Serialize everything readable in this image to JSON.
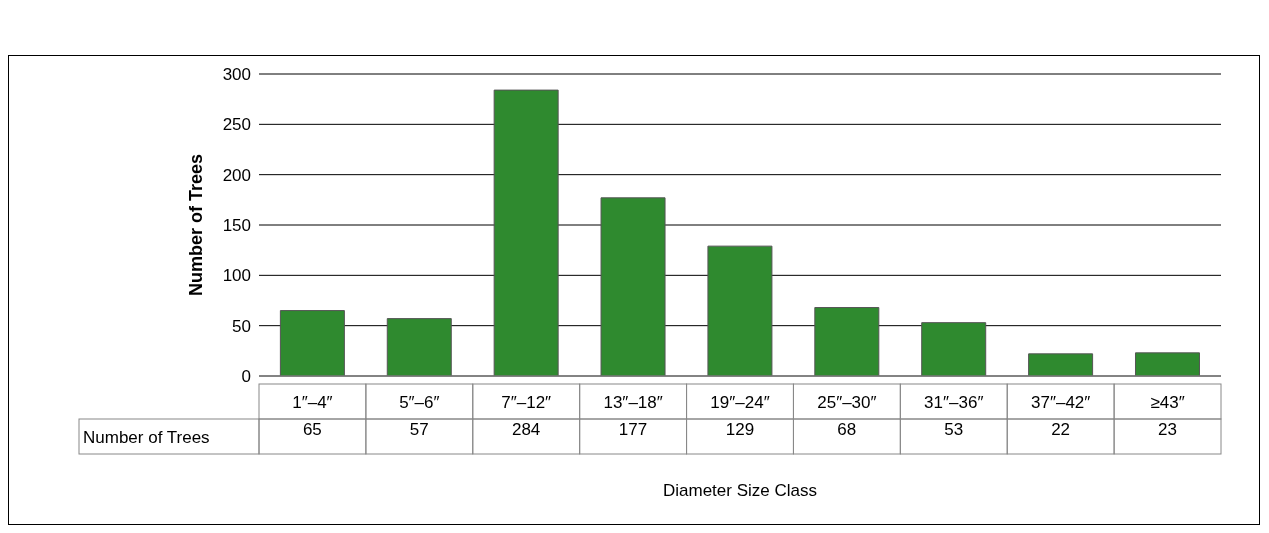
{
  "chart_data": {
    "type": "bar",
    "xlabel": "Diameter Size Class",
    "ylabel": "Number of Trees",
    "categories": [
      "1″–4″",
      "5″–6″",
      "7″–12″",
      "13″–18″",
      "19″–24″",
      "25″–30″",
      "31″–36″",
      "37″–42″",
      "≥43″"
    ],
    "series": [
      {
        "name": "Number of Trees",
        "color": "#2f8a2f",
        "values": [
          65,
          57,
          284,
          177,
          129,
          68,
          53,
          22,
          23
        ]
      }
    ],
    "ylim": [
      0,
      300
    ],
    "yticks": [
      0,
      50,
      100,
      150,
      200,
      250,
      300
    ],
    "grid": "y",
    "data_labels": true
  }
}
